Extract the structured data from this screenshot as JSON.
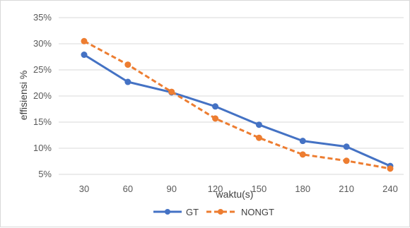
{
  "chart_data": {
    "type": "line",
    "title": "",
    "xlabel": "waktu(s)",
    "ylabel": "effisiensi %",
    "x": [
      30,
      60,
      90,
      120,
      150,
      180,
      210,
      240
    ],
    "x_tick_labels": [
      "30",
      "60",
      "90",
      "120",
      "150",
      "180",
      "210",
      "240"
    ],
    "ylim": [
      5,
      35
    ],
    "y_ticks": [
      5,
      10,
      15,
      20,
      25,
      30,
      35
    ],
    "y_tick_labels": [
      "5%",
      "10%",
      "15%",
      "20%",
      "25%",
      "30%",
      "35%"
    ],
    "grid": "horizontal",
    "legend_position": "bottom",
    "series": [
      {
        "name": "GT",
        "values": [
          27.9,
          22.7,
          20.7,
          18.0,
          14.5,
          11.4,
          10.3,
          6.6
        ],
        "color": "#4472c4",
        "style": "solid"
      },
      {
        "name": "NONGT",
        "values": [
          30.5,
          26.0,
          20.8,
          15.7,
          12.0,
          8.8,
          7.6,
          6.1
        ],
        "color": "#ed7d31",
        "style": "dashed"
      }
    ]
  }
}
